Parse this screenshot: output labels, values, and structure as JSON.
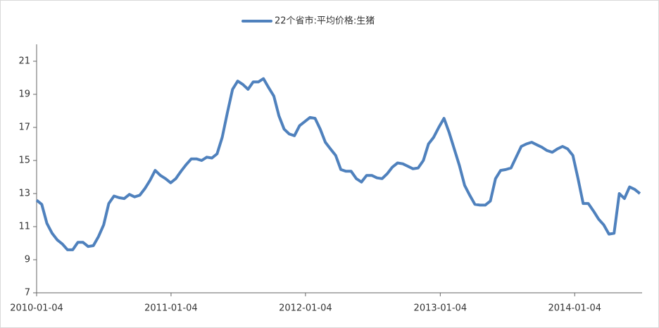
{
  "chart_data": {
    "type": "line",
    "series": [
      {
        "name": "22个省市:平均价格:生猪",
        "color": "#4f81bd",
        "values": [
          12.6,
          12.35,
          11.2,
          10.6,
          10.2,
          9.95,
          9.6,
          9.6,
          10.05,
          10.05,
          9.8,
          9.85,
          10.4,
          11.1,
          12.4,
          12.85,
          12.75,
          12.7,
          12.95,
          12.8,
          12.9,
          13.3,
          13.8,
          14.4,
          14.1,
          13.9,
          13.65,
          13.9,
          14.35,
          14.75,
          15.1,
          15.1,
          15.0,
          15.2,
          15.15,
          15.4,
          16.4,
          17.9,
          19.3,
          19.8,
          19.6,
          19.3,
          19.75,
          19.75,
          19.95,
          19.4,
          18.9,
          17.7,
          16.9,
          16.6,
          16.5,
          17.1,
          17.35,
          17.6,
          17.55,
          16.9,
          16.1,
          15.7,
          15.3,
          14.45,
          14.35,
          14.35,
          13.9,
          13.7,
          14.1,
          14.1,
          13.95,
          13.9,
          14.2,
          14.6,
          14.85,
          14.8,
          14.65,
          14.5,
          14.55,
          15.0,
          16.0,
          16.4,
          17.0,
          17.55,
          16.7,
          15.7,
          14.7,
          13.5,
          12.9,
          12.35,
          12.3,
          12.3,
          12.55,
          13.9,
          14.4,
          14.45,
          14.55,
          15.2,
          15.85,
          16.0,
          16.1,
          15.95,
          15.8,
          15.6,
          15.5,
          15.7,
          15.85,
          15.7,
          15.3,
          13.9,
          12.4,
          12.4,
          11.95,
          11.45,
          11.1,
          10.55,
          10.6,
          13.0,
          12.7,
          13.4,
          13.25,
          13.0
        ]
      }
    ],
    "x": [
      "2010-01-04",
      "2010-01-18",
      "2010-02-01",
      "2010-02-15",
      "2010-03-01",
      "2010-03-15",
      "2010-03-29",
      "2010-04-12",
      "2010-04-26",
      "2010-05-10",
      "2010-05-24",
      "2010-06-07",
      "2010-06-21",
      "2010-07-05",
      "2010-07-19",
      "2010-08-02",
      "2010-08-16",
      "2010-08-30",
      "2010-09-13",
      "2010-09-27",
      "2010-10-11",
      "2010-10-25",
      "2010-11-08",
      "2010-11-22",
      "2010-12-06",
      "2010-12-20",
      "2011-01-03",
      "2011-01-17",
      "2011-01-31",
      "2011-02-14",
      "2011-02-28",
      "2011-03-14",
      "2011-03-28",
      "2011-04-11",
      "2011-04-25",
      "2011-05-09",
      "2011-05-23",
      "2011-06-06",
      "2011-06-20",
      "2011-07-04",
      "2011-07-18",
      "2011-08-01",
      "2011-08-15",
      "2011-08-29",
      "2011-09-12",
      "2011-09-26",
      "2011-10-10",
      "2011-10-24",
      "2011-11-07",
      "2011-11-21",
      "2011-12-05",
      "2011-12-19",
      "2012-01-02",
      "2012-01-16",
      "2012-01-30",
      "2012-02-13",
      "2012-02-27",
      "2012-03-12",
      "2012-03-26",
      "2012-04-09",
      "2012-04-23",
      "2012-05-07",
      "2012-05-21",
      "2012-06-04",
      "2012-06-18",
      "2012-07-02",
      "2012-07-16",
      "2012-07-30",
      "2012-08-13",
      "2012-08-27",
      "2012-09-10",
      "2012-09-24",
      "2012-10-08",
      "2012-10-22",
      "2012-11-05",
      "2012-11-19",
      "2012-12-03",
      "2012-12-17",
      "2012-12-31",
      "2013-01-14",
      "2013-01-28",
      "2013-02-11",
      "2013-02-25",
      "2013-03-11",
      "2013-03-25",
      "2013-04-08",
      "2013-04-22",
      "2013-05-06",
      "2013-05-20",
      "2013-06-03",
      "2013-06-17",
      "2013-07-01",
      "2013-07-15",
      "2013-07-29",
      "2013-08-12",
      "2013-08-26",
      "2013-09-09",
      "2013-09-23",
      "2013-10-07",
      "2013-10-21",
      "2013-11-04",
      "2013-11-18",
      "2013-12-02",
      "2013-12-16",
      "2013-12-30",
      "2014-01-13",
      "2014-01-27",
      "2014-02-10",
      "2014-02-24",
      "2014-03-10",
      "2014-03-24",
      "2014-04-07",
      "2014-04-21",
      "2014-05-05",
      "2014-05-19",
      "2014-06-02",
      "2014-06-16",
      "2014-06-30"
    ],
    "xlim": [
      "2010-01-04",
      "2014-07-06"
    ],
    "xticks": [
      "2010-01-04",
      "2011-01-04",
      "2012-01-04",
      "2013-01-04",
      "2014-01-04"
    ],
    "ylim": [
      7,
      22
    ],
    "yticks": [
      7,
      9,
      11,
      13,
      15,
      17,
      19,
      21
    ],
    "grid": false,
    "legend": "top"
  }
}
